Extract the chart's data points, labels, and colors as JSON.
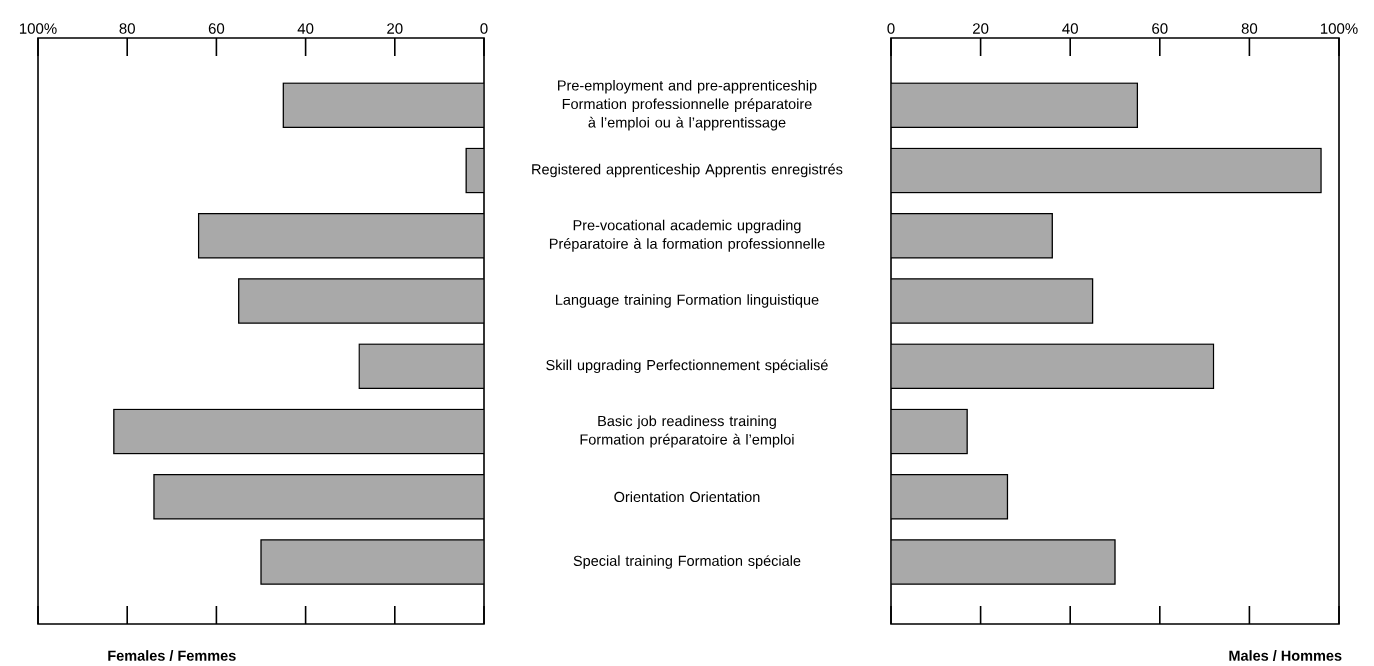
{
  "chart_data": [
    {
      "type": "bar",
      "orientation": "horizontal",
      "xlabel": "Females / Femmes",
      "categories": [
        "Pre-employment and pre-apprenticeship Formation professionnelle préparatoire à l’emploi ou à l’apprentissage",
        "Registered apprenticeship Apprentis enregistrés",
        "Pre-vocational academic upgrading Préparatoire à la formation professionnelle",
        "Language training Formation linguistique",
        "Skill upgrading Perfectionnement spécialisé",
        "Basic job readiness training Formation préparatoire à l’emploi",
        "Orientation Orientation",
        "Special training Formation spéciale"
      ],
      "values": [
        45,
        4,
        64,
        55,
        28,
        83,
        74,
        50
      ],
      "color": "#a9a9a9",
      "xlim": [
        100,
        0
      ],
      "xticks": [
        {
          "value": 100,
          "label": "100%"
        },
        80,
        60,
        40,
        20,
        0
      ]
    },
    {
      "type": "bar",
      "orientation": "horizontal",
      "xlabel": "Males / Hommes",
      "values": [
        55,
        96,
        36,
        45,
        72,
        17,
        26,
        50
      ],
      "color": "#a9a9a9",
      "xlim": [
        0,
        100
      ],
      "xticks": [
        0,
        20,
        40,
        60,
        80,
        {
          "value": 100,
          "label": "100%"
        }
      ],
      "tick_labels": "x"
    }
  ]
}
